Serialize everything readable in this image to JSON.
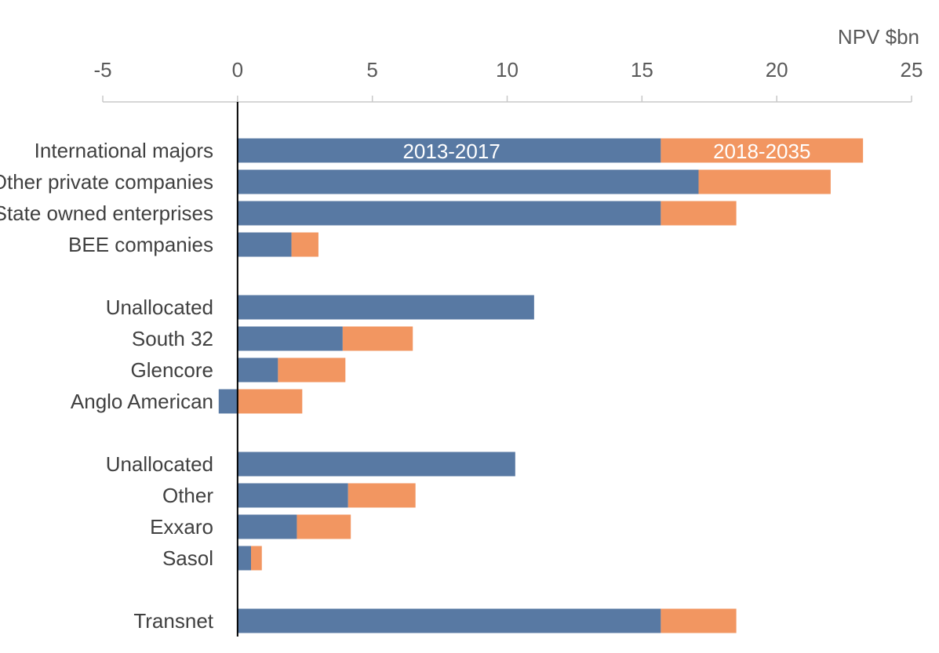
{
  "chart_data": {
    "type": "bar",
    "orientation": "horizontal",
    "stacked": true,
    "unit_label": "NPV $bn",
    "xlim": [
      -5,
      25
    ],
    "x_ticks": [
      -5,
      0,
      5,
      10,
      15,
      20,
      25
    ],
    "grid": false,
    "axis_position": "top",
    "categories": [
      "International majors",
      "Other private companies",
      "State owned enterprises",
      "BEE companies",
      "Unallocated",
      "South 32",
      "Glencore",
      "Anglo American",
      "Unallocated",
      "Other",
      "Exxaro",
      "Sasol",
      "Transnet"
    ],
    "groups": [
      [
        0,
        1,
        2,
        3
      ],
      [
        4,
        5,
        6,
        7
      ],
      [
        8,
        9,
        10,
        11
      ],
      [
        12
      ]
    ],
    "series": [
      {
        "name": "2013-2017",
        "color": "#5879a3",
        "values": [
          15.7,
          17.1,
          15.7,
          2.0,
          11.0,
          3.9,
          1.5,
          -0.7,
          10.3,
          4.1,
          2.2,
          0.5,
          15.7
        ]
      },
      {
        "name": "2018-2035",
        "color": "#f29661",
        "values": [
          7.5,
          4.9,
          2.8,
          1.0,
          0.0,
          2.6,
          2.5,
          2.4,
          0.0,
          2.5,
          2.0,
          0.4,
          2.8
        ]
      }
    ],
    "series_labels_on_first_bar": true
  }
}
